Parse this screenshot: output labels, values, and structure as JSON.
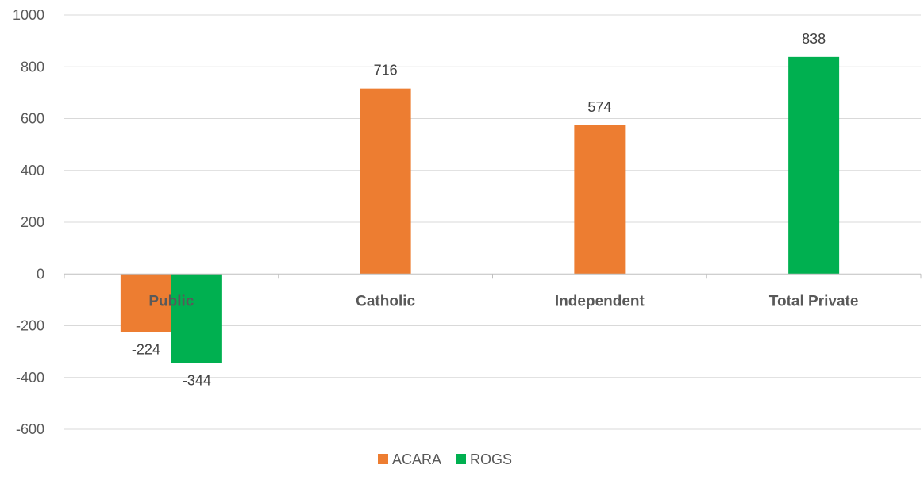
{
  "chart_data": {
    "type": "bar",
    "categories": [
      "Public",
      "Catholic",
      "Independent",
      "Total Private"
    ],
    "series": [
      {
        "name": "ACARA",
        "color": "#ED7D31",
        "values": [
          -224,
          716,
          574,
          null
        ]
      },
      {
        "name": "ROGS",
        "color": "#00B050",
        "values": [
          -344,
          null,
          null,
          838
        ]
      }
    ],
    "ylim": [
      -600,
      1000
    ],
    "yticks": [
      -600,
      -400,
      -200,
      0,
      200,
      400,
      600,
      800,
      1000
    ],
    "grid": true,
    "legend_position": "bottom"
  }
}
